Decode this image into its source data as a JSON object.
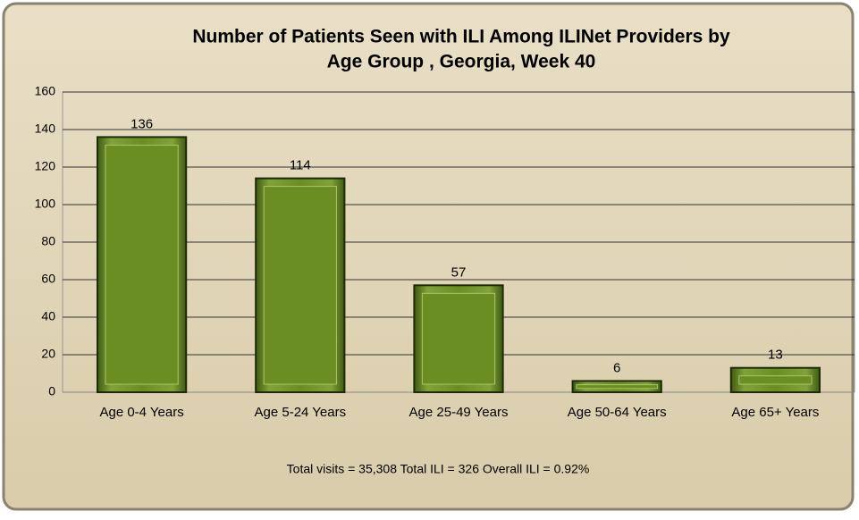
{
  "chart_data": {
    "type": "bar",
    "title": [
      "Number of Patients Seen with ILI Among ILINet Providers by",
      "Age Group , Georgia, Week 40"
    ],
    "categories": [
      "Age 0-4 Years",
      "Age 5-24 Years",
      "Age 25-49 Years",
      "Age 50-64 Years",
      "Age 65+ Years"
    ],
    "values": [
      136,
      114,
      57,
      6,
      13
    ],
    "color": "#6b8e23",
    "ylim": [
      0,
      160
    ],
    "yticks": [
      0,
      20,
      40,
      60,
      80,
      100,
      120,
      140,
      160
    ],
    "grid": true,
    "annotation": "Total visits = 35,308 Total ILI = 326 Overall ILI = 0.92%"
  }
}
